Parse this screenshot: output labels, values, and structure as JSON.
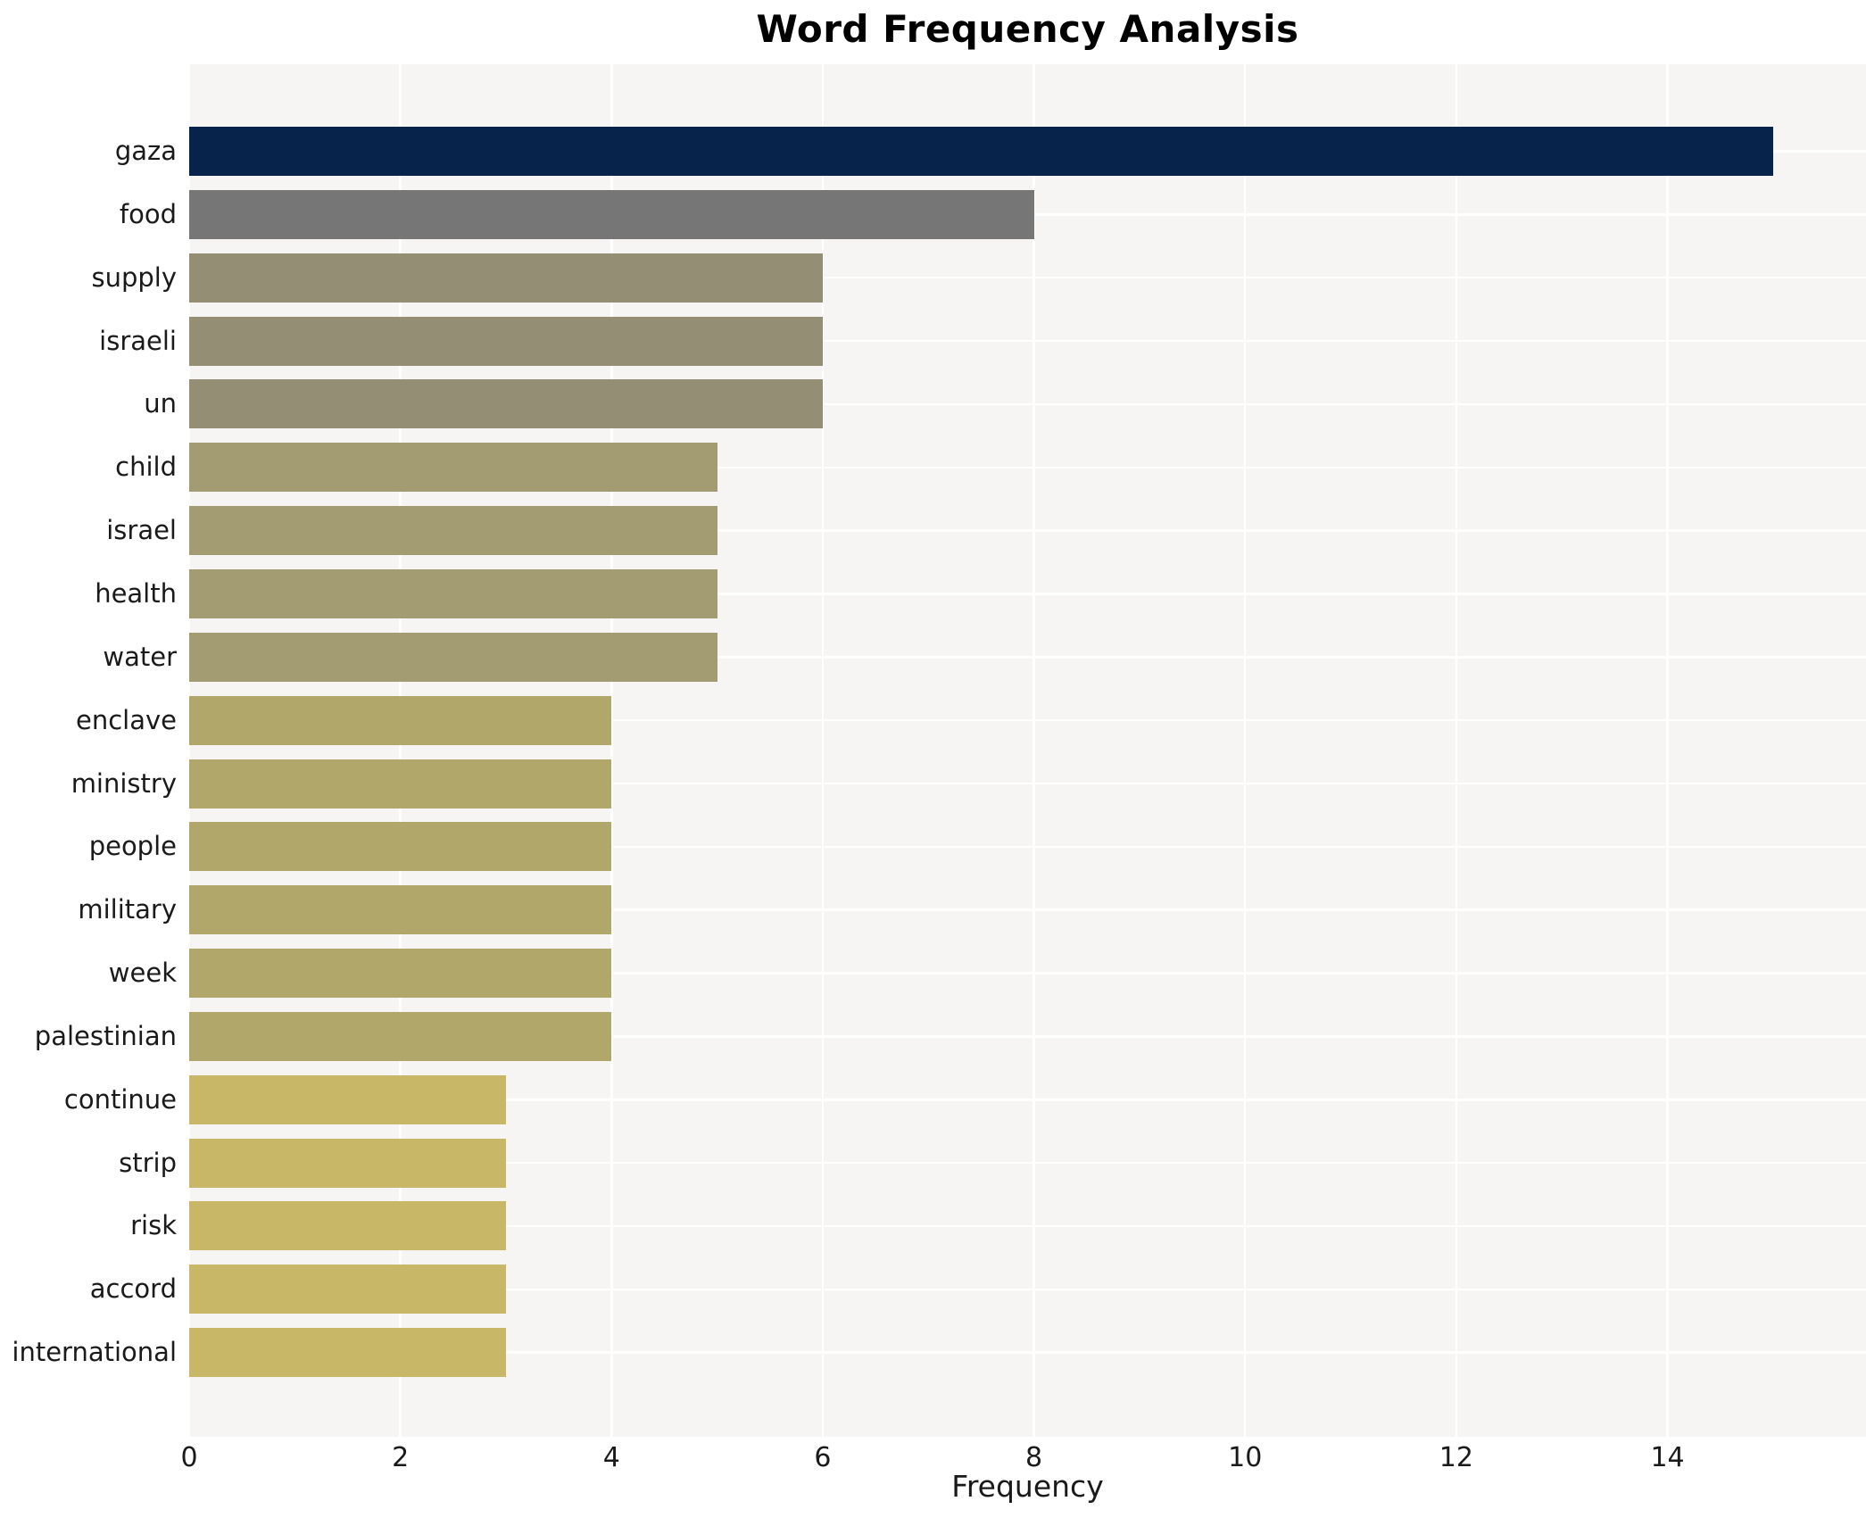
{
  "title": "Word Frequency Analysis",
  "chart_data": {
    "type": "bar",
    "orientation": "horizontal",
    "title": "Word Frequency Analysis",
    "xlabel": "Frequency",
    "ylabel": "",
    "categories": [
      "gaza",
      "food",
      "supply",
      "israeli",
      "un",
      "child",
      "israel",
      "health",
      "water",
      "enclave",
      "ministry",
      "people",
      "military",
      "week",
      "palestinian",
      "continue",
      "strip",
      "risk",
      "accord",
      "international"
    ],
    "values": [
      15,
      8,
      6,
      6,
      6,
      5,
      5,
      5,
      5,
      4,
      4,
      4,
      4,
      4,
      4,
      3,
      3,
      3,
      3,
      3
    ],
    "bar_colors": [
      "#07234b",
      "#767676",
      "#948e74",
      "#948e74",
      "#948e74",
      "#a39c72",
      "#a39c72",
      "#a39c72",
      "#a39c72",
      "#b2a76b",
      "#b2a76b",
      "#b2a76b",
      "#b2a76b",
      "#b2a76b",
      "#b2a76b",
      "#c7b766",
      "#c7b766",
      "#c7b766",
      "#c7b766",
      "#c7b766"
    ],
    "xlim": [
      0,
      15.88
    ],
    "xticks": [
      0,
      2,
      4,
      6,
      8,
      10,
      12,
      14
    ],
    "grid": true,
    "grid_color": "#ffffff",
    "plot_bg": "#f6f5f3",
    "legend": "none"
  }
}
